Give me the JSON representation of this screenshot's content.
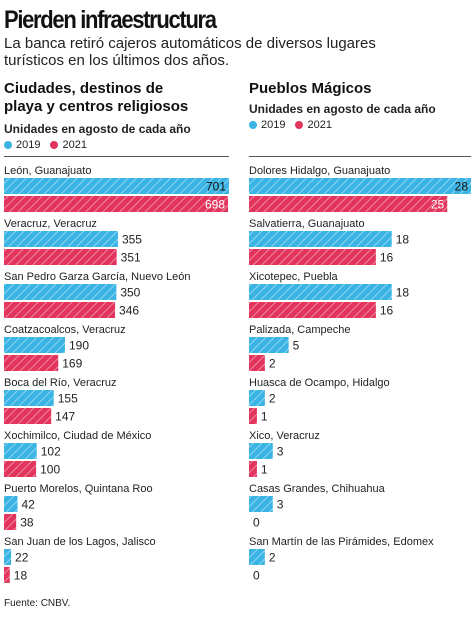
{
  "title": "Pierden infraestructura",
  "subtitle": "La banca retiró cajeros automáticos de diversos lugares turísticos en los últimos dos años.",
  "colors": {
    "y2019": "#3ab4e4",
    "y2021": "#e2345c"
  },
  "source": "Fuente: CNBV.",
  "chart_data": [
    {
      "type": "bar",
      "title": "Ciudades, destinos de playa y centros religiosos",
      "subtitle": "Unidades en agosto de cada año",
      "categories": [
        "León, Guanajuato",
        "Veracruz, Veracruz",
        "San Pedro Garza García, Nuevo León",
        "Coatzacoalcos, Veracruz",
        "Boca del Río, Veracruz",
        "Xochimilco, Ciudad de México",
        "Puerto Morelos, Quintana Roo",
        "San Juan de los Lagos, Jalisco"
      ],
      "series": [
        {
          "name": "2019",
          "values": [
            701,
            355,
            350,
            190,
            155,
            102,
            42,
            22
          ]
        },
        {
          "name": "2021",
          "values": [
            698,
            351,
            346,
            169,
            147,
            100,
            38,
            18
          ]
        }
      ],
      "xlim": [
        0,
        701
      ],
      "legend": "top-left"
    },
    {
      "type": "bar",
      "title": "Pueblos Mágicos",
      "subtitle": "Unidades en agosto de cada año",
      "categories": [
        "Dolores Hidalgo, Guanajuato",
        "Salvatierra, Guanajuato",
        "Xicotepec, Puebla",
        "Palizada, Campeche",
        "Huasca de Ocampo, Hidalgo",
        "Xico, Veracruz",
        "Casas Grandes, Chihuahua",
        "San Martín de las Pirámides, Edomex"
      ],
      "series": [
        {
          "name": "2019",
          "values": [
            28,
            18,
            18,
            5,
            2,
            3,
            3,
            2
          ]
        },
        {
          "name": "2021",
          "values": [
            25,
            16,
            16,
            2,
            1,
            1,
            0,
            0
          ]
        }
      ],
      "xlim": [
        0,
        28
      ],
      "legend": "top-left"
    }
  ]
}
